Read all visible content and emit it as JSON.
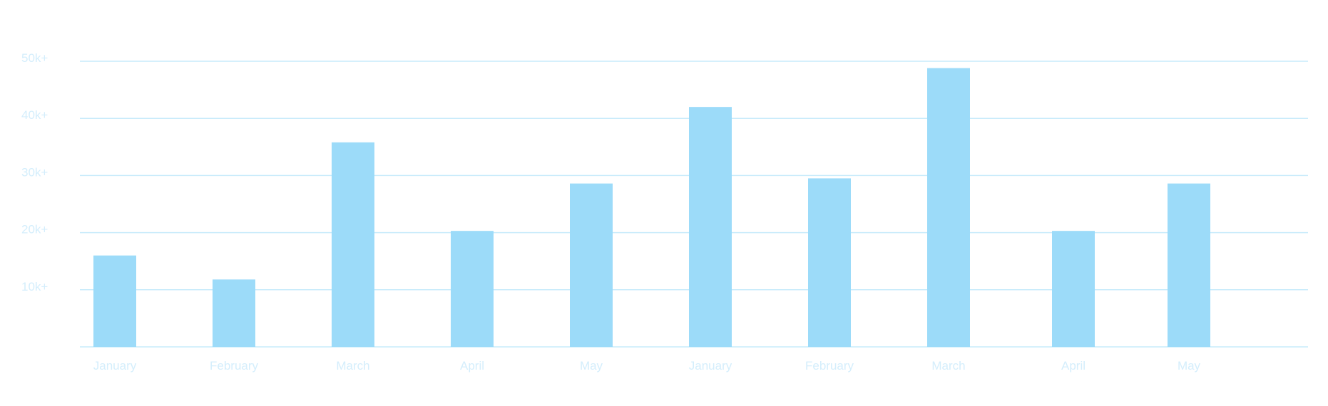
{
  "colors": {
    "bar": "#9cdbf9",
    "grid": "#c7ebfb",
    "text": "#d4eefc",
    "background": "#ffffff"
  },
  "chart_data": {
    "type": "bar",
    "categories": [
      "January",
      "February",
      "March",
      "April",
      "May",
      "January",
      "February",
      "March",
      "April",
      "May"
    ],
    "values": [
      16000,
      11800,
      35800,
      20300,
      28600,
      42000,
      29500,
      48800,
      20300,
      28600
    ],
    "ylim": [
      0,
      50000
    ],
    "yticks": [
      {
        "value": 10000,
        "label": "10k+"
      },
      {
        "value": 20000,
        "label": "20k+"
      },
      {
        "value": 30000,
        "label": "30k+"
      },
      {
        "value": 40000,
        "label": "40k+"
      },
      {
        "value": 50000,
        "label": "50k+"
      }
    ],
    "grid": true,
    "legend": "none"
  }
}
